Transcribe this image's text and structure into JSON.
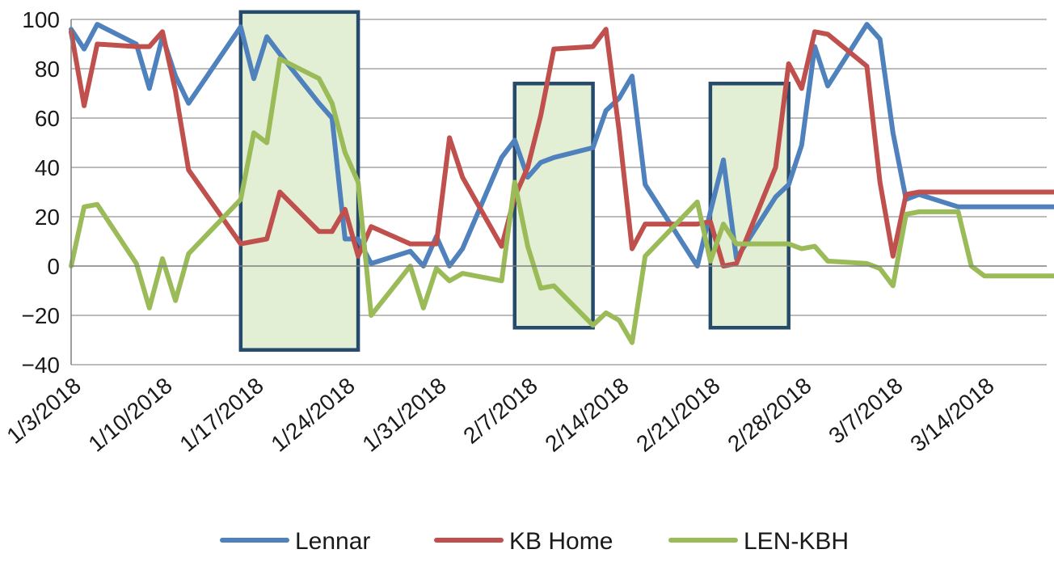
{
  "chart_data": {
    "type": "line",
    "title": "",
    "xlabel": "",
    "ylabel": "",
    "ylim": [
      -40,
      100
    ],
    "y_ticks": [
      100,
      80,
      60,
      40,
      20,
      0,
      -20,
      -40
    ],
    "y_tick_labels": [
      "100",
      "80",
      "60",
      "40",
      "20",
      "0",
      "−20",
      "−40"
    ],
    "x_tick_labels": [
      "1/3/2018",
      "1/10/2018",
      "1/17/2018",
      "1/24/2018",
      "1/31/2018",
      "2/7/2018",
      "2/14/2018",
      "2/21/2018",
      "2/28/2018",
      "3/7/2018",
      "3/14/2018"
    ],
    "grid": true,
    "legend_position": "bottom",
    "x": [
      "1/3/2018",
      "1/4/2018",
      "1/5/2018",
      "1/8/2018",
      "1/9/2018",
      "1/10/2018",
      "1/11/2018",
      "1/12/2018",
      "1/16/2018",
      "1/17/2018",
      "1/18/2018",
      "1/19/2018",
      "1/22/2018",
      "1/23/2018",
      "1/24/2018",
      "1/25/2018",
      "1/26/2018",
      "1/29/2018",
      "1/30/2018",
      "1/31/2018",
      "2/1/2018",
      "2/2/2018",
      "2/5/2018",
      "2/6/2018",
      "2/7/2018",
      "2/8/2018",
      "2/9/2018",
      "2/12/2018",
      "2/13/2018",
      "2/14/2018",
      "2/15/2018",
      "2/16/2018",
      "2/20/2018",
      "2/21/2018",
      "2/22/2018",
      "2/23/2018",
      "2/26/2018",
      "2/27/2018",
      "2/28/2018",
      "3/1/2018",
      "3/2/2018",
      "3/5/2018",
      "3/6/2018",
      "3/7/2018",
      "3/8/2018",
      "3/9/2018",
      "3/12/2018",
      "3/13/2018",
      "3/14/2018",
      "3/15/2018",
      "3/16/2018",
      "3/19/2018",
      "3/20/2018"
    ],
    "series": [
      {
        "name": "Lennar",
        "color": "#4f81bd",
        "values": [
          96,
          88,
          98,
          90,
          72,
          93,
          77,
          66,
          97,
          76,
          93,
          86,
          66,
          60,
          11,
          11,
          1,
          6,
          0,
          12,
          0,
          7,
          44,
          51,
          36,
          42,
          44,
          48,
          63,
          68,
          77,
          33,
          0,
          22,
          43,
          3,
          28,
          33,
          49,
          89,
          73,
          98,
          92,
          54,
          27,
          29,
          24,
          24,
          24,
          24,
          24,
          24,
          24
        ]
      },
      {
        "name": "KB Home",
        "color": "#c0504d",
        "values": [
          95,
          65,
          90,
          89,
          89,
          95,
          71,
          39,
          9,
          10,
          11,
          30,
          14,
          14,
          23,
          4,
          16,
          9,
          9,
          9,
          52,
          36,
          8,
          28,
          40,
          61,
          88,
          89,
          96,
          55,
          7,
          17,
          17,
          18,
          0,
          1,
          40,
          82,
          72,
          95,
          94,
          81,
          34,
          4,
          29,
          30,
          30,
          30,
          30,
          30,
          30,
          30,
          30
        ]
      },
      {
        "name": "LEN-KBH",
        "color": "#9bbb59",
        "values": [
          0,
          24,
          25,
          1,
          -17,
          3,
          -14,
          5,
          27,
          54,
          50,
          84,
          76,
          66,
          46,
          34,
          -20,
          0,
          -17,
          -1,
          -6,
          -3,
          -6,
          34,
          8,
          -9,
          -8,
          -24,
          -19,
          -22,
          -31,
          4,
          26,
          2,
          17,
          9,
          9,
          9,
          7,
          8,
          2,
          1,
          -1,
          -8,
          21,
          22,
          22,
          0,
          -4,
          -4,
          -4,
          -4,
          -4
        ]
      }
    ],
    "highlight_boxes": [
      {
        "x_start": "1/16/2018",
        "x_end": "1/25/2018",
        "y_low": -34,
        "y_high": 103
      },
      {
        "x_start": "2/6/2018",
        "x_end": "2/12/2018",
        "y_low": -25,
        "y_high": 74
      },
      {
        "x_start": "2/21/2018",
        "x_end": "2/27/2018",
        "y_low": -25,
        "y_high": 74
      }
    ],
    "box_colors": {
      "fill": "#e2efd4",
      "stroke": "#254a6b"
    },
    "grid_color": "#a6a6a6",
    "axis_color": "#7f7f7f"
  }
}
